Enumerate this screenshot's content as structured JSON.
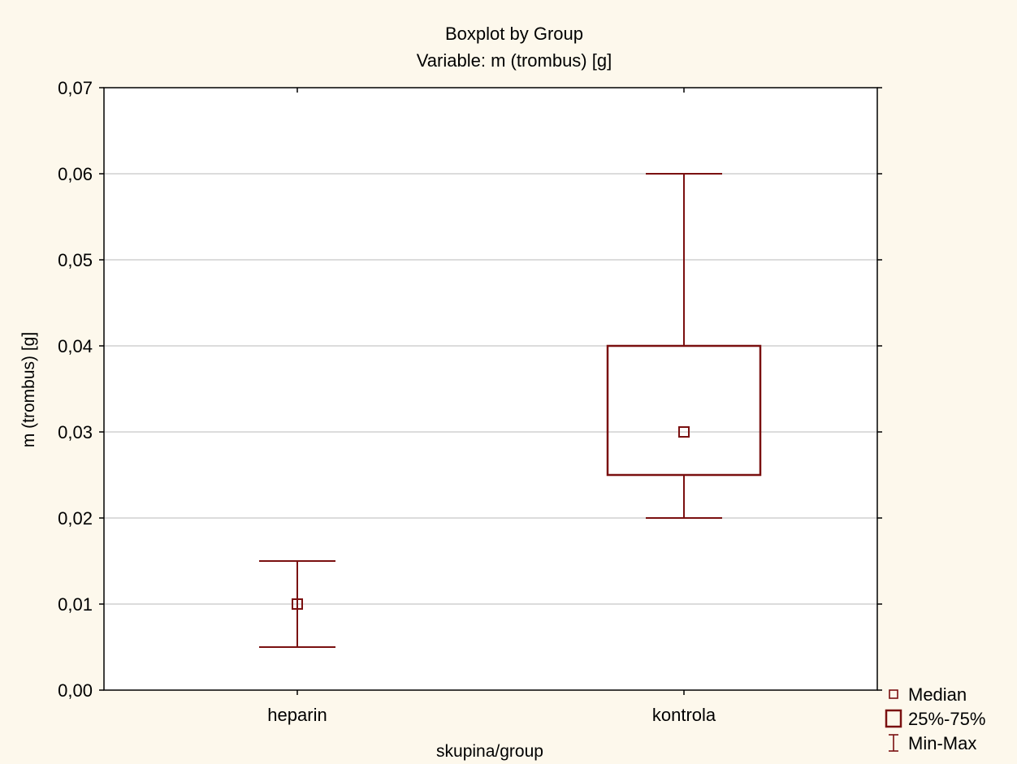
{
  "colors": {
    "background": "#fdf8ec",
    "plot_background": "#ffffff",
    "series": "#7a1010",
    "grid": "#d0d0d0",
    "axis": "#000000"
  },
  "chart_data": {
    "type": "boxplot",
    "title": "Boxplot by Group",
    "subtitle": "Variable: m (trombus) [g]",
    "xlabel": "skupina/group",
    "ylabel": "m (trombus) [g]",
    "ylim": [
      0,
      0.07
    ],
    "grid": true,
    "y_ticks": [
      {
        "value": 0.0,
        "label": "0,00"
      },
      {
        "value": 0.01,
        "label": "0,01"
      },
      {
        "value": 0.02,
        "label": "0,02"
      },
      {
        "value": 0.03,
        "label": "0,03"
      },
      {
        "value": 0.04,
        "label": "0,04"
      },
      {
        "value": 0.05,
        "label": "0,05"
      },
      {
        "value": 0.06,
        "label": "0,06"
      },
      {
        "value": 0.07,
        "label": "0,07"
      }
    ],
    "categories": [
      "heparin",
      "kontrola"
    ],
    "series": [
      {
        "category": "heparin",
        "min": 0.005,
        "q1": 0.01,
        "median": 0.01,
        "q3": 0.01,
        "max": 0.015
      },
      {
        "category": "kontrola",
        "min": 0.02,
        "q1": 0.025,
        "median": 0.03,
        "q3": 0.04,
        "max": 0.06
      }
    ],
    "legend": {
      "position": "bottom-right",
      "entries": [
        {
          "symbol": "median",
          "label": "Median"
        },
        {
          "symbol": "box",
          "label": "25%-75%"
        },
        {
          "symbol": "whisker",
          "label": "Min-Max"
        }
      ]
    }
  }
}
